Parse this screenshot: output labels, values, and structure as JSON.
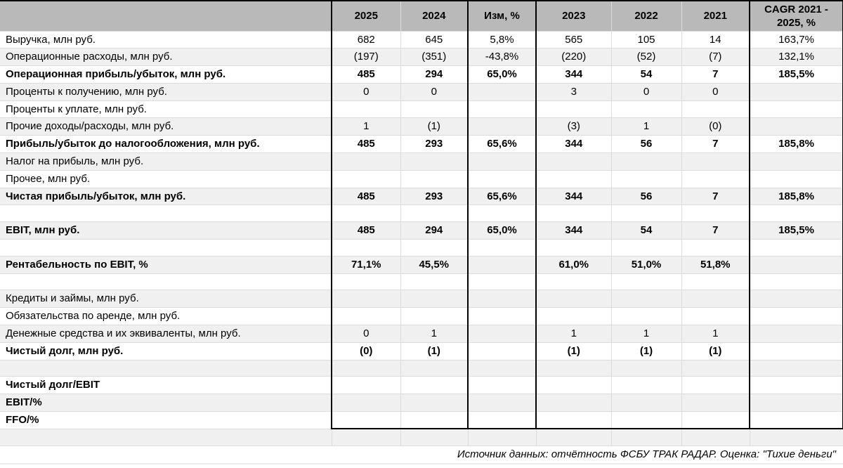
{
  "colors": {
    "header_bg": "#b9b9b9",
    "stripe_bg": "#f0f0f0",
    "grid_line": "#dcdcdc",
    "box_border": "#000000"
  },
  "table": {
    "column_headers": [
      "",
      "2025",
      "2024",
      "Изм, %",
      "2023",
      "2022",
      "2021",
      "CAGR 2021 - 2025, %"
    ],
    "rows": [
      {
        "label": "Выручка, млн руб.",
        "bold": false,
        "values": [
          "682",
          "645",
          "5,8%",
          "565",
          "105",
          "14",
          "163,7%"
        ]
      },
      {
        "label": "Операционные расходы, млн руб.",
        "bold": false,
        "values": [
          "(197)",
          "(351)",
          "-43,8%",
          "(220)",
          "(52)",
          "(7)",
          "132,1%"
        ]
      },
      {
        "label": "Операционная прибыль/убыток, млн руб.",
        "bold": true,
        "values": [
          "485",
          "294",
          "65,0%",
          "344",
          "54",
          "7",
          "185,5%"
        ]
      },
      {
        "label": "Проценты к получению, млн руб.",
        "bold": false,
        "values": [
          "0",
          "0",
          "",
          "3",
          "0",
          "0",
          ""
        ]
      },
      {
        "label": "Проценты к уплате, млн руб.",
        "bold": false,
        "values": [
          "",
          "",
          "",
          "",
          "",
          "",
          ""
        ]
      },
      {
        "label": "Прочие доходы/расходы, млн руб.",
        "bold": false,
        "values": [
          "1",
          "(1)",
          "",
          "(3)",
          "1",
          "(0)",
          ""
        ]
      },
      {
        "label": "Прибыль/убыток до налогообложения, млн руб.",
        "bold": true,
        "values": [
          "485",
          "293",
          "65,6%",
          "344",
          "56",
          "7",
          "185,8%"
        ]
      },
      {
        "label": "Налог на прибыль, млн руб.",
        "bold": false,
        "values": [
          "",
          "",
          "",
          "",
          "",
          "",
          ""
        ]
      },
      {
        "label": "Прочее, млн руб.",
        "bold": false,
        "values": [
          "",
          "",
          "",
          "",
          "",
          "",
          ""
        ]
      },
      {
        "label": "Чистая прибыль/убыток, млн руб.",
        "bold": true,
        "values": [
          "485",
          "293",
          "65,6%",
          "344",
          "56",
          "7",
          "185,8%"
        ]
      },
      {
        "label": "",
        "bold": false,
        "values": [
          "",
          "",
          "",
          "",
          "",
          "",
          ""
        ]
      },
      {
        "label": "EBIT, млн руб.",
        "bold": true,
        "values": [
          "485",
          "294",
          "65,0%",
          "344",
          "54",
          "7",
          "185,5%"
        ]
      },
      {
        "label": "",
        "bold": false,
        "values": [
          "",
          "",
          "",
          "",
          "",
          "",
          ""
        ]
      },
      {
        "label": "Рентабельность по EBIT, %",
        "bold": true,
        "values": [
          "71,1%",
          "45,5%",
          "",
          "61,0%",
          "51,0%",
          "51,8%",
          ""
        ]
      },
      {
        "label": "",
        "bold": false,
        "values": [
          "",
          "",
          "",
          "",
          "",
          "",
          ""
        ]
      },
      {
        "label": "Кредиты и займы, млн руб.",
        "bold": false,
        "values": [
          "",
          "",
          "",
          "",
          "",
          "",
          ""
        ]
      },
      {
        "label": "Обязательства по аренде, млн руб.",
        "bold": false,
        "values": [
          "",
          "",
          "",
          "",
          "",
          "",
          ""
        ]
      },
      {
        "label": "Денежные средства и их эквиваленты, млн руб.",
        "bold": false,
        "values": [
          "0",
          "1",
          "",
          "1",
          "1",
          "1",
          ""
        ]
      },
      {
        "label": "Чистый долг, млн руб.",
        "bold": true,
        "values": [
          "(0)",
          "(1)",
          "",
          "(1)",
          "(1)",
          "(1)",
          ""
        ]
      },
      {
        "label": "",
        "bold": false,
        "values": [
          "",
          "",
          "",
          "",
          "",
          "",
          ""
        ]
      },
      {
        "label": "Чистый долг/EBIT",
        "bold": true,
        "values": [
          "",
          "",
          "",
          "",
          "",
          "",
          ""
        ]
      },
      {
        "label": "EBIT/%",
        "bold": true,
        "values": [
          "",
          "",
          "",
          "",
          "",
          "",
          ""
        ]
      },
      {
        "label": "FFO/%",
        "bold": true,
        "values": [
          "",
          "",
          "",
          "",
          "",
          "",
          ""
        ]
      }
    ]
  },
  "footer": {
    "source_note": "Источник данных: отчётность ФСБУ ТРАК РАДАР. Оценка: \"Тихие деньги\""
  }
}
